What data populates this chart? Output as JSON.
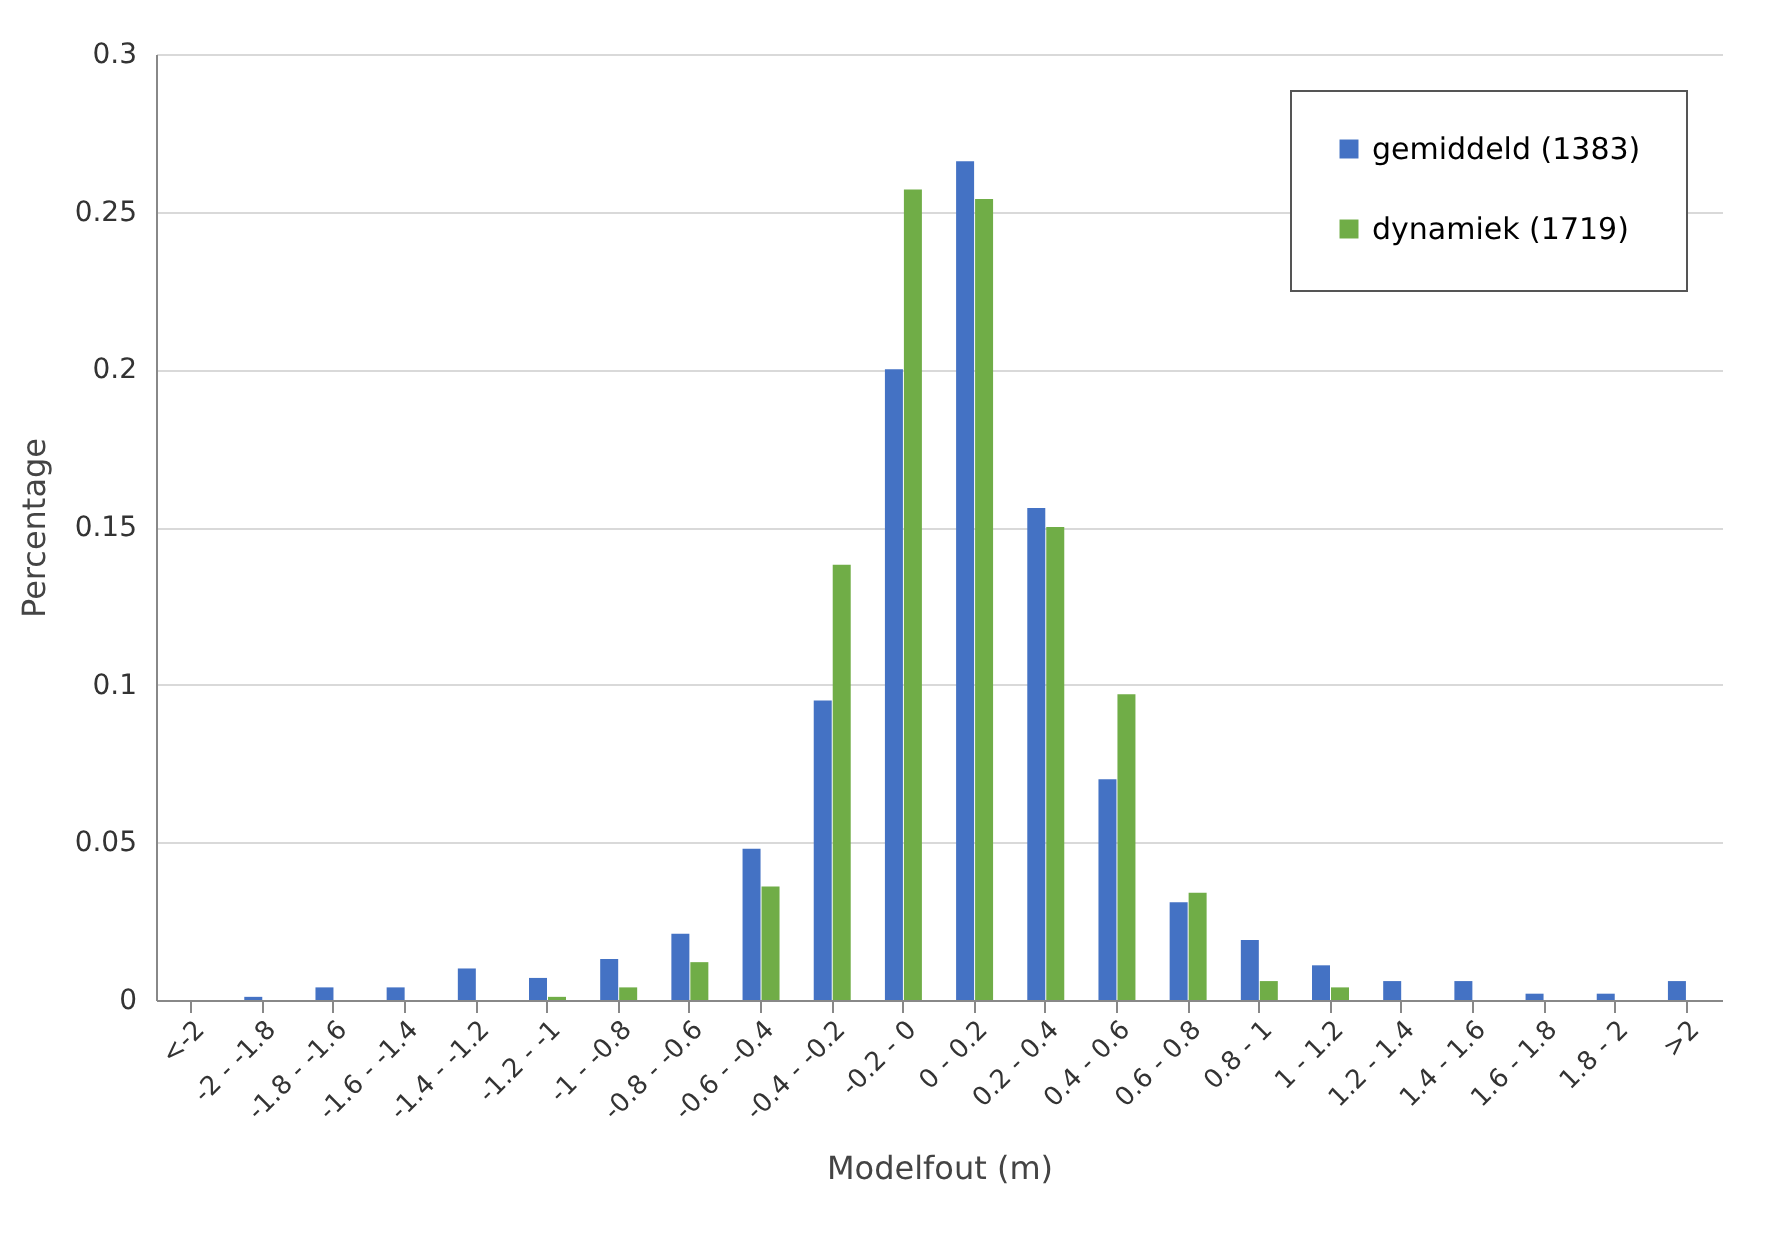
{
  "chart_data": {
    "type": "bar",
    "xlabel": "Modelfout (m)",
    "ylabel": "Percentage",
    "categories": [
      "<-2",
      "-2 - -1.8",
      "-1.8 - -1.6",
      "-1.6 - -1.4",
      "-1.4 - -1.2",
      "-1.2 - -1",
      "-1 - -0.8",
      "-0.8 - -0.6",
      "-0.6 - -0.4",
      "-0.4 - -0.2",
      "-0.2 - 0",
      "0 - 0.2",
      "0.2 - 0.4",
      "0.4 - 0.6",
      "0.6 - 0.8",
      "0.8 - 1",
      "1 - 1.2",
      "1.2 - 1.4",
      "1.4 - 1.6",
      "1.6 - 1.8",
      "1.8 - 2",
      ">2"
    ],
    "series": [
      {
        "name": "gemiddeld (1383)",
        "color": "#4472c4",
        "values": [
          0,
          0.001,
          0.004,
          0.004,
          0.01,
          0.007,
          0.013,
          0.021,
          0.048,
          0.095,
          0.2,
          0.266,
          0.156,
          0.07,
          0.031,
          0.019,
          0.011,
          0.006,
          0.006,
          0.002,
          0.002,
          0.006
        ]
      },
      {
        "name": "dynamiek (1719)",
        "color": "#70ad47",
        "values": [
          0,
          0,
          0,
          0,
          0,
          0.001,
          0.004,
          0.012,
          0.036,
          0.138,
          0.257,
          0.254,
          0.15,
          0.097,
          0.034,
          0.006,
          0.004,
          0,
          0,
          0,
          0,
          0
        ]
      }
    ],
    "ylim": [
      0,
      0.3
    ],
    "yticks": [
      0,
      0.05,
      0.1,
      0.15,
      0.2,
      0.25,
      0.3
    ],
    "grid": "y",
    "legend": "top right"
  }
}
